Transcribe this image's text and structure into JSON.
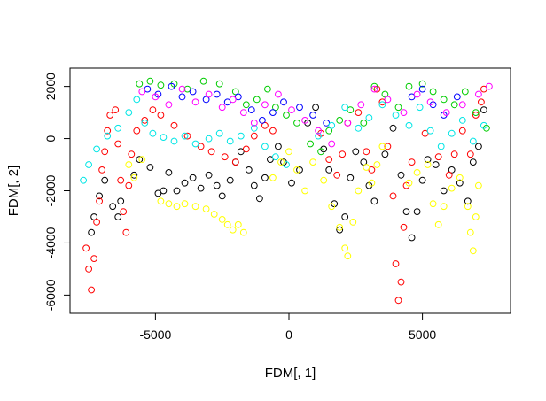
{
  "chart_data": {
    "type": "scatter",
    "title": "",
    "xlabel": "FDM[, 1]",
    "ylabel": "FDM[, 2]",
    "xlim": [
      -8200,
      8300
    ],
    "ylim": [
      -6700,
      2700
    ],
    "x_ticks": [
      -5000,
      0,
      5000
    ],
    "x_tick_labels": [
      "-5000",
      "0",
      "5000"
    ],
    "y_ticks": [
      -6000,
      -4000,
      -2000,
      0,
      2000
    ],
    "y_tick_labels": [
      "-6000",
      "-4000",
      "-2000",
      "0",
      "2000"
    ],
    "grid": false,
    "legend": "none",
    "marker": "open-circle",
    "series": [
      {
        "color": "#000000",
        "points": [
          [
            -7400,
            -3600
          ],
          [
            -7300,
            -3000
          ],
          [
            -7100,
            -2200
          ],
          [
            -6900,
            -1600
          ],
          [
            -6600,
            -2600
          ],
          [
            -6400,
            -3000
          ],
          [
            -6300,
            -2400
          ],
          [
            -5800,
            -1400
          ],
          [
            -5600,
            -800
          ],
          [
            -5200,
            -1100
          ],
          [
            -4900,
            -2100
          ],
          [
            -4700,
            -2000
          ],
          [
            -4500,
            -1300
          ],
          [
            -4200,
            -2000
          ],
          [
            -3900,
            -1700
          ],
          [
            -3600,
            -1500
          ],
          [
            -3300,
            -1900
          ],
          [
            -3000,
            -1400
          ],
          [
            -2700,
            -1800
          ],
          [
            -2500,
            -2200
          ],
          [
            -2200,
            -1600
          ],
          [
            -2000,
            -900
          ],
          [
            -1800,
            -500
          ],
          [
            -1500,
            -1200
          ],
          [
            -1300,
            -1800
          ],
          [
            -1100,
            -2300
          ],
          [
            -900,
            -1500
          ],
          [
            -700,
            -800
          ],
          [
            -400,
            -300
          ],
          [
            -200,
            -900
          ],
          [
            100,
            -1700
          ],
          [
            400,
            -1200
          ],
          [
            700,
            600
          ],
          [
            1000,
            1200
          ],
          [
            1300,
            -400
          ],
          [
            1500,
            -1200
          ],
          [
            1700,
            -2500
          ],
          [
            1900,
            -3500
          ],
          [
            2100,
            -3000
          ],
          [
            2300,
            -1500
          ],
          [
            2500,
            -500
          ],
          [
            2800,
            -900
          ],
          [
            3000,
            -1800
          ],
          [
            3200,
            -2400
          ],
          [
            3600,
            -600
          ],
          [
            3900,
            400
          ],
          [
            4200,
            -1400
          ],
          [
            4400,
            -2800
          ],
          [
            4600,
            -3800
          ],
          [
            4800,
            -2800
          ],
          [
            5000,
            -1600
          ],
          [
            5200,
            -800
          ],
          [
            5500,
            -1000
          ],
          [
            5800,
            -2000
          ],
          [
            6100,
            -1200
          ],
          [
            6400,
            -1700
          ],
          [
            6700,
            -2400
          ],
          [
            6900,
            -900
          ],
          [
            7100,
            -300
          ],
          [
            7300,
            1100
          ]
        ]
      },
      {
        "color": "#ff0000",
        "points": [
          [
            -7600,
            -4200
          ],
          [
            -7500,
            -5000
          ],
          [
            -7400,
            -5800
          ],
          [
            -7300,
            -4600
          ],
          [
            -7200,
            -3200
          ],
          [
            -7100,
            -2400
          ],
          [
            -7000,
            -1200
          ],
          [
            -6900,
            -500
          ],
          [
            -6800,
            300
          ],
          [
            -6700,
            900
          ],
          [
            -6500,
            1100
          ],
          [
            -6400,
            -200
          ],
          [
            -6300,
            -1600
          ],
          [
            -6200,
            -2800
          ],
          [
            -6100,
            -3600
          ],
          [
            -6000,
            -1800
          ],
          [
            -5900,
            -600
          ],
          [
            -5700,
            300
          ],
          [
            -5400,
            700
          ],
          [
            -5100,
            1100
          ],
          [
            -4800,
            900
          ],
          [
            -4300,
            500
          ],
          [
            -3800,
            100
          ],
          [
            -3300,
            -300
          ],
          [
            -2900,
            -500
          ],
          [
            -2400,
            -700
          ],
          [
            -2000,
            -900
          ],
          [
            -1600,
            -400
          ],
          [
            -1300,
            100
          ],
          [
            -900,
            500
          ],
          [
            -600,
            300
          ],
          [
            1200,
            200
          ],
          [
            1500,
            -800
          ],
          [
            1800,
            -1400
          ],
          [
            2000,
            -600
          ],
          [
            2200,
            600
          ],
          [
            2600,
            1000
          ],
          [
            2900,
            -500
          ],
          [
            3100,
            -1200
          ],
          [
            3300,
            1900
          ],
          [
            3500,
            1400
          ],
          [
            3700,
            -300
          ],
          [
            3900,
            -2200
          ],
          [
            4000,
            -4800
          ],
          [
            4100,
            -6200
          ],
          [
            4200,
            -5500
          ],
          [
            4300,
            -3400
          ],
          [
            4400,
            -1800
          ],
          [
            4600,
            -900
          ],
          [
            5100,
            200
          ],
          [
            5600,
            -700
          ],
          [
            6000,
            -1400
          ],
          [
            6200,
            -600
          ],
          [
            6500,
            300
          ],
          [
            6800,
            -600
          ],
          [
            7000,
            900
          ],
          [
            7200,
            1400
          ],
          [
            7300,
            1900
          ]
        ]
      },
      {
        "color": "#00cc00",
        "points": [
          [
            -5600,
            2100
          ],
          [
            -5200,
            2200
          ],
          [
            -4800,
            2050
          ],
          [
            -4300,
            2100
          ],
          [
            -3800,
            1900
          ],
          [
            -3200,
            2200
          ],
          [
            -2600,
            2100
          ],
          [
            -2000,
            1800
          ],
          [
            -1600,
            1300
          ],
          [
            -1200,
            1500
          ],
          [
            -800,
            1900
          ],
          [
            -500,
            1200
          ],
          [
            -100,
            900
          ],
          [
            300,
            600
          ],
          [
            800,
            -200
          ],
          [
            1200,
            -500
          ],
          [
            1500,
            300
          ],
          [
            1900,
            700
          ],
          [
            2300,
            1100
          ],
          [
            2800,
            600
          ],
          [
            3200,
            2000
          ],
          [
            3600,
            1700
          ],
          [
            4100,
            1200
          ],
          [
            4500,
            2000
          ],
          [
            5000,
            2100
          ],
          [
            5400,
            1800
          ],
          [
            5800,
            1500
          ],
          [
            6200,
            1300
          ],
          [
            6600,
            1800
          ],
          [
            7000,
            1000
          ],
          [
            7400,
            400
          ]
        ]
      },
      {
        "color": "#0000ff",
        "points": [
          [
            -5300,
            1900
          ],
          [
            -4900,
            1700
          ],
          [
            -4400,
            2000
          ],
          [
            -4000,
            1600
          ],
          [
            -3600,
            1800
          ],
          [
            -3100,
            1500
          ],
          [
            -2700,
            1700
          ],
          [
            -2300,
            1400
          ],
          [
            -1900,
            1600
          ],
          [
            -1400,
            1100
          ],
          [
            -1000,
            700
          ],
          [
            -600,
            1000
          ],
          [
            -200,
            1400
          ],
          [
            400,
            1200
          ],
          [
            900,
            900
          ],
          [
            1400,
            600
          ],
          [
            4600,
            1600
          ],
          [
            5000,
            1900
          ],
          [
            5400,
            1300
          ],
          [
            5800,
            900
          ],
          [
            6300,
            1600
          ]
        ]
      },
      {
        "color": "#00e5e5",
        "points": [
          [
            -7700,
            -1600
          ],
          [
            -7500,
            -1000
          ],
          [
            -7200,
            -400
          ],
          [
            -6800,
            100
          ],
          [
            -6400,
            400
          ],
          [
            -6000,
            1000
          ],
          [
            -5700,
            1500
          ],
          [
            -5400,
            600
          ],
          [
            -5100,
            200
          ],
          [
            -4700,
            50
          ],
          [
            -4300,
            -100
          ],
          [
            -3900,
            100
          ],
          [
            -3500,
            -200
          ],
          [
            -3000,
            0
          ],
          [
            -2600,
            200
          ],
          [
            -2200,
            -100
          ],
          [
            -1800,
            100
          ],
          [
            -1300,
            400
          ],
          [
            -900,
            -300
          ],
          [
            -500,
            -700
          ],
          [
            -100,
            -1000
          ],
          [
            1100,
            100
          ],
          [
            1600,
            500
          ],
          [
            2100,
            1200
          ],
          [
            2600,
            400
          ],
          [
            3000,
            800
          ],
          [
            3500,
            1300
          ],
          [
            4000,
            900
          ],
          [
            4500,
            500
          ],
          [
            4900,
            1200
          ],
          [
            5300,
            300
          ],
          [
            5700,
            -300
          ],
          [
            6100,
            200
          ],
          [
            6500,
            700
          ],
          [
            6900,
            -100
          ],
          [
            7300,
            500
          ]
        ]
      },
      {
        "color": "#ff00ff",
        "points": [
          [
            -5500,
            1800
          ],
          [
            -5000,
            1600
          ],
          [
            -4500,
            1300
          ],
          [
            -4000,
            1900
          ],
          [
            -3500,
            1400
          ],
          [
            -3000,
            1700
          ],
          [
            -2500,
            1200
          ],
          [
            -2100,
            1500
          ],
          [
            -1700,
            1000
          ],
          [
            -1300,
            600
          ],
          [
            -900,
            1300
          ],
          [
            -400,
            1700
          ],
          [
            100,
            1100
          ],
          [
            600,
            700
          ],
          [
            1100,
            300
          ],
          [
            1600,
            -200
          ],
          [
            2200,
            600
          ],
          [
            2700,
            1300
          ],
          [
            3200,
            1900
          ],
          [
            3700,
            1500
          ],
          [
            4300,
            1000
          ],
          [
            4800,
            1700
          ],
          [
            5300,
            1400
          ],
          [
            5900,
            1000
          ],
          [
            6500,
            1300
          ],
          [
            7100,
            1700
          ],
          [
            7500,
            2000
          ]
        ]
      },
      {
        "color": "#ffff00",
        "points": [
          [
            -6000,
            -1000
          ],
          [
            -5800,
            -1500
          ],
          [
            -5500,
            -800
          ],
          [
            -4800,
            -2400
          ],
          [
            -4500,
            -2500
          ],
          [
            -4200,
            -2600
          ],
          [
            -3900,
            -2500
          ],
          [
            -3500,
            -2600
          ],
          [
            -3100,
            -2700
          ],
          [
            -2800,
            -2900
          ],
          [
            -2500,
            -3100
          ],
          [
            -2300,
            -3300
          ],
          [
            -2100,
            -3500
          ],
          [
            -1900,
            -3300
          ],
          [
            -1700,
            -3600
          ],
          [
            -600,
            -1500
          ],
          [
            -300,
            -900
          ],
          [
            0,
            -500
          ],
          [
            300,
            -1200
          ],
          [
            600,
            -2000
          ],
          [
            900,
            -900
          ],
          [
            1300,
            -1600
          ],
          [
            1600,
            -2600
          ],
          [
            1900,
            -3400
          ],
          [
            2100,
            -4200
          ],
          [
            2200,
            -4500
          ],
          [
            2400,
            -3200
          ],
          [
            2600,
            -2000
          ],
          [
            2900,
            -1100
          ],
          [
            3100,
            -1700
          ],
          [
            3300,
            -1000
          ],
          [
            3500,
            -300
          ],
          [
            4500,
            -1700
          ],
          [
            4800,
            -1300
          ],
          [
            5200,
            -1000
          ],
          [
            5400,
            -2500
          ],
          [
            5600,
            -3300
          ],
          [
            5800,
            -2600
          ],
          [
            6100,
            -1900
          ],
          [
            6400,
            -1500
          ],
          [
            6700,
            -2600
          ],
          [
            6800,
            -3600
          ],
          [
            6900,
            -4300
          ],
          [
            7000,
            -3000
          ],
          [
            7100,
            -1800
          ]
        ]
      }
    ]
  }
}
